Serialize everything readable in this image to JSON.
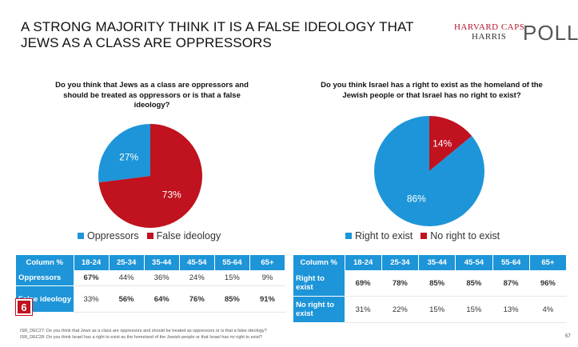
{
  "title": "A STRONG MAJORITY THINK IT IS A FALSE IDEOLOGY THAT JEWS AS A CLASS ARE OPPRESSORS",
  "logo": {
    "line1": "HARVARD CAPS",
    "line2": "HARRIS",
    "line3": "POLL"
  },
  "colors": {
    "blue": "#1d95d8",
    "red": "#c0121f"
  },
  "badge": "6",
  "page_number": "57",
  "footnotes": [
    "ISR_DEC27: Do you think that Jews as a class are oppressors and should be treated as oppressors or is that a false ideology?",
    "ISR_DEC28: Do you think Israel has a right to exist as the homeland of the Jewish people or that Israel has no right to exist?"
  ],
  "chart_data": [
    {
      "type": "pie",
      "title": "Do you think that Jews as a class are oppressors and should be treated as oppressors or is that a false ideology?",
      "labels": [
        "Oppressors",
        "False ideology"
      ],
      "values": [
        27,
        73
      ],
      "value_labels": [
        "27%",
        "73%"
      ],
      "colors": [
        "#1d95d8",
        "#c0121f"
      ],
      "legend_position": "bottom"
    },
    {
      "type": "pie",
      "title": "Do you think Israel has a right to exist as the homeland of the Jewish people or that Israel has no right to exist?",
      "labels": [
        "Right to exist",
        "No right to exist"
      ],
      "values": [
        86,
        14
      ],
      "value_labels": [
        "86%",
        "14%"
      ],
      "colors": [
        "#1d95d8",
        "#c0121f"
      ],
      "legend_position": "bottom"
    },
    {
      "type": "table",
      "columns": [
        "Column %",
        "18-24",
        "25-34",
        "35-44",
        "45-54",
        "55-64",
        "65+"
      ],
      "rows": [
        {
          "label": "Oppressors",
          "cells": [
            "67%",
            "44%",
            "36%",
            "24%",
            "15%",
            "9%"
          ],
          "bold": [
            true,
            false,
            false,
            false,
            false,
            false
          ]
        },
        {
          "label": "False ideology",
          "cells": [
            "33%",
            "56%",
            "64%",
            "76%",
            "85%",
            "91%"
          ],
          "bold": [
            false,
            true,
            true,
            true,
            true,
            true
          ]
        }
      ]
    },
    {
      "type": "table",
      "columns": [
        "Column %",
        "18-24",
        "25-34",
        "35-44",
        "45-54",
        "55-64",
        "65+"
      ],
      "rows": [
        {
          "label": "Right to exist",
          "cells": [
            "69%",
            "78%",
            "85%",
            "85%",
            "87%",
            "96%"
          ],
          "bold": [
            true,
            true,
            true,
            true,
            true,
            true
          ]
        },
        {
          "label": "No right to exist",
          "cells": [
            "31%",
            "22%",
            "15%",
            "15%",
            "13%",
            "4%"
          ],
          "bold": [
            false,
            false,
            false,
            false,
            false,
            false
          ]
        }
      ]
    }
  ]
}
